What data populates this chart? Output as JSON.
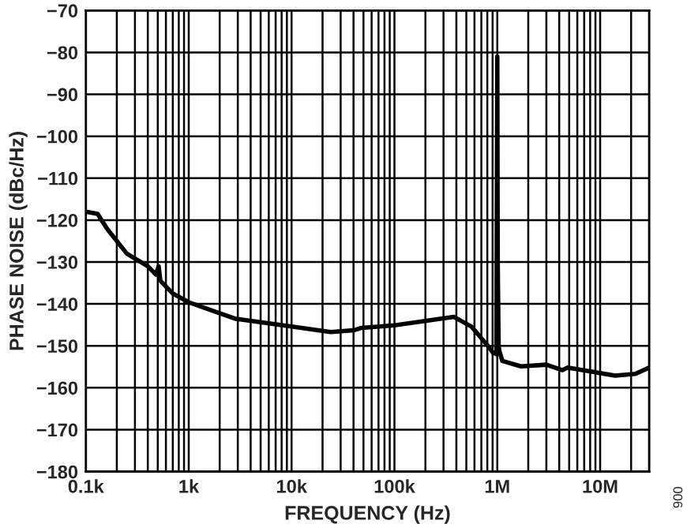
{
  "chart_data": {
    "type": "line",
    "xlabel": "FREQUENCY (Hz)",
    "ylabel": "PHASE NOISE (dBc/Hz)",
    "log": "x",
    "grid": true,
    "legend": false,
    "marker": "none",
    "line_style": "solid",
    "xlim": [
      100,
      30000000
    ],
    "ylim": [
      -180,
      -70
    ],
    "xticks": [
      {
        "value": 100,
        "label": "0.1k"
      },
      {
        "value": 1000,
        "label": "1k"
      },
      {
        "value": 10000,
        "label": "10k"
      },
      {
        "value": 100000,
        "label": "100k"
      },
      {
        "value": 1000000,
        "label": "1M"
      },
      {
        "value": 10000000,
        "label": "10M"
      }
    ],
    "yticks": [
      {
        "value": -180,
        "label": "−180"
      },
      {
        "value": -170,
        "label": "−170"
      },
      {
        "value": -160,
        "label": "−160"
      },
      {
        "value": -150,
        "label": "−150"
      },
      {
        "value": -140,
        "label": "−140"
      },
      {
        "value": -130,
        "label": "−130"
      },
      {
        "value": -120,
        "label": "−120"
      },
      {
        "value": -110,
        "label": "−110"
      },
      {
        "value": -100,
        "label": "−100"
      },
      {
        "value": -90,
        "label": "−90"
      },
      {
        "value": -80,
        "label": "−80"
      },
      {
        "value": -70,
        "label": "−70"
      }
    ],
    "annotations": [
      "006"
    ],
    "series": [
      {
        "color": "#000000",
        "x": [
          100,
          130,
          160,
          250,
          400,
          480,
          510,
          530,
          700,
          1000,
          2800,
          10000,
          24000,
          40000,
          48000,
          100000,
          380000,
          560000,
          810000,
          900000,
          980000,
          1000000,
          1010000,
          1030000,
          1050000,
          1120000,
          1700000,
          3000000,
          4300000,
          4800000,
          10000000,
          14000000,
          22000000,
          30000000
        ],
        "values": [
          -118,
          -118.5,
          -122,
          -128,
          -131,
          -133,
          -131,
          -134.5,
          -137.5,
          -139.6,
          -143.5,
          -145.4,
          -146.7,
          -146.3,
          -145.7,
          -145.1,
          -143.1,
          -145.4,
          -150,
          -151.5,
          -152,
          -81,
          -130,
          -150,
          -151.3,
          -153.6,
          -154.9,
          -154.5,
          -155.8,
          -155.2,
          -156.5,
          -157.1,
          -156.7,
          -155.2
        ]
      }
    ]
  }
}
